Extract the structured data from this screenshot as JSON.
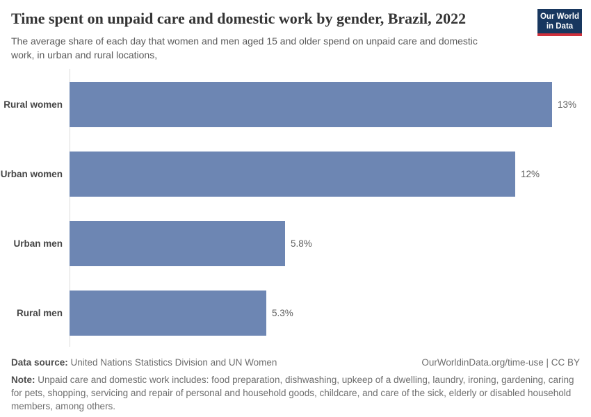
{
  "header": {
    "title": "Time spent on unpaid care and domestic work by gender, Brazil, 2022",
    "subtitle": "The average share of each day that women and men aged 15 and older spend on unpaid care and domestic work, in urban and rural locations,",
    "logo": {
      "line1": "Our World",
      "line2": "in Data"
    }
  },
  "chart_data": {
    "type": "bar",
    "orientation": "horizontal",
    "title": "Time spent on unpaid care and domestic work by gender, Brazil, 2022",
    "subtitle": "The average share of each day that women and men aged 15 and older spend on unpaid care and domestic work, in urban and rural locations,",
    "categories": [
      "Rural women",
      "Urban women",
      "Urban men",
      "Rural men"
    ],
    "values": [
      13,
      12,
      5.8,
      5.3
    ],
    "value_labels": [
      "13%",
      "12%",
      "5.8%",
      "5.3%"
    ],
    "unit": "%",
    "xlim": [
      0,
      13
    ],
    "xlabel": "",
    "ylabel": "",
    "grid": false,
    "legend": false,
    "bar_color": "#6d86b3"
  },
  "footer": {
    "source_label": "Data source:",
    "source_text": " United Nations Statistics Division and UN Women",
    "attribution": "OurWorldinData.org/time-use | CC BY",
    "note_label": "Note:",
    "note_text": " Unpaid care and domestic work includes: food preparation, dishwashing, upkeep of a dwelling, laundry, ironing, gardening, caring for pets, shopping, servicing and repair of personal and household goods, childcare, and care of the sick, elderly or disabled household members, among others."
  },
  "colors": {
    "bar": "#6d86b3",
    "axis": "#dcdcdc",
    "logo_background": "#18375f",
    "logo_stripe": "#d0313c",
    "title_text": "#343434",
    "subtitle_text": "#5a5a5a"
  }
}
